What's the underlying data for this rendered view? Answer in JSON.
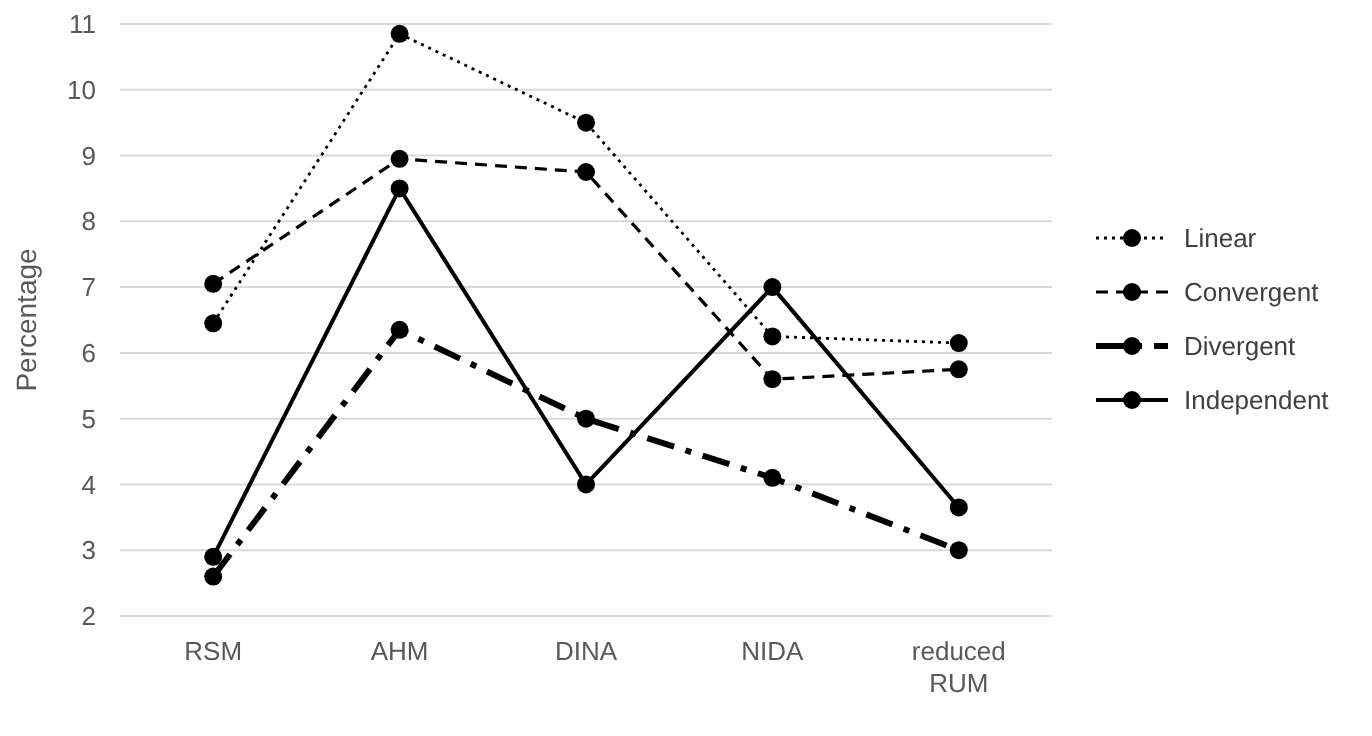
{
  "chart_data": {
    "type": "line",
    "ylabel": "Percentage",
    "categories": [
      "RSM",
      "AHM",
      "DINA",
      "NIDA",
      "reduced RUM"
    ],
    "ylim": [
      2,
      11
    ],
    "yticks": [
      2,
      3,
      4,
      5,
      6,
      7,
      8,
      9,
      10,
      11
    ],
    "grid": "y",
    "legend": "right",
    "marker": "circle",
    "series": [
      {
        "name": "Linear",
        "color": "#000000",
        "line_style": "dotted",
        "values": [
          6.45,
          10.85,
          9.5,
          6.25,
          6.15
        ]
      },
      {
        "name": "Convergent",
        "color": "#000000",
        "line_style": "dashed",
        "values": [
          7.05,
          8.95,
          8.75,
          5.6,
          5.75
        ]
      },
      {
        "name": "Divergent",
        "color": "#000000",
        "line_style": "dashdot",
        "values": [
          2.6,
          6.35,
          5.0,
          4.1,
          3.0
        ]
      },
      {
        "name": "Independent",
        "color": "#000000",
        "line_style": "solid",
        "values": [
          2.9,
          8.5,
          4.0,
          7.0,
          3.65
        ]
      }
    ]
  }
}
